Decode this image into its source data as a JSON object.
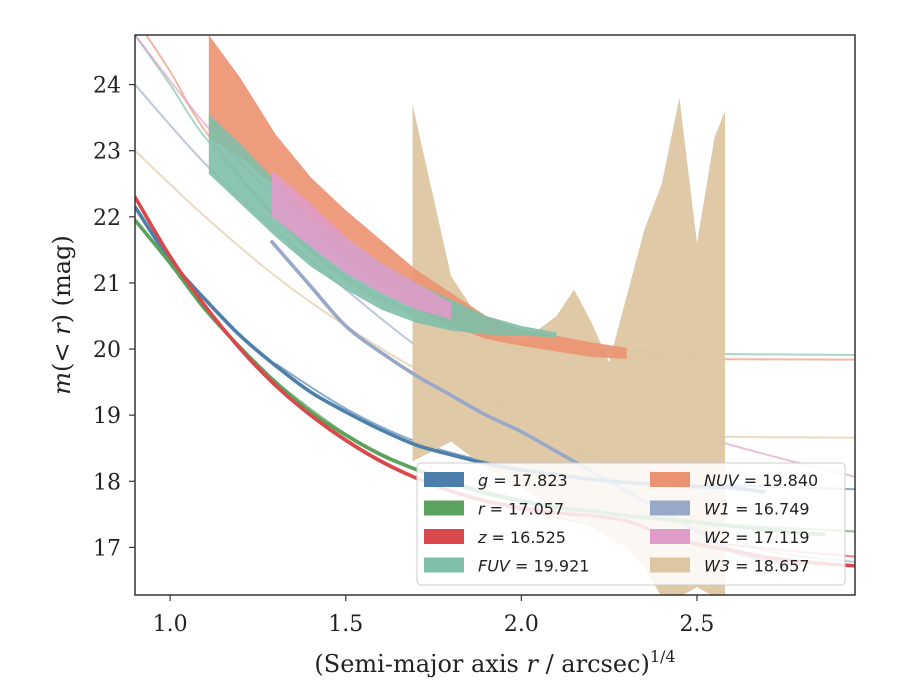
{
  "chart_data": {
    "type": "line",
    "xlabel": "(Semi-major axis r / arcsec)^1/4",
    "ylabel": "m(< r) (mag)",
    "xlim": [
      0.9,
      2.95
    ],
    "ylim": [
      24.75,
      16.28
    ],
    "y_inverted": true,
    "x_ticks": [
      1.0,
      1.5,
      2.0,
      2.5
    ],
    "x_tick_labels": [
      "1.0",
      "1.5",
      "2.0",
      "2.5"
    ],
    "y_ticks": [
      17,
      18,
      19,
      20,
      21,
      22,
      23,
      24
    ],
    "y_tick_labels": [
      "17",
      "18",
      "19",
      "20",
      "21",
      "22",
      "23",
      "24"
    ],
    "grid": false,
    "legend_position": "lower-right",
    "series": [
      {
        "key": "g",
        "label_var": "g",
        "label_val": "= 17.823",
        "color": "#4c7faa",
        "data_type": "line",
        "data": [
          [
            0.9,
            22.15
          ],
          [
            1.0,
            21.35
          ],
          [
            1.1,
            20.75
          ],
          [
            1.2,
            20.2
          ],
          [
            1.3,
            19.75
          ],
          [
            1.4,
            19.35
          ],
          [
            1.5,
            19.05
          ],
          [
            1.6,
            18.78
          ],
          [
            1.7,
            18.55
          ],
          [
            1.8,
            18.4
          ],
          [
            1.9,
            18.27
          ],
          [
            2.0,
            18.17
          ],
          [
            2.1,
            18.1
          ],
          [
            2.2,
            18.03
          ],
          [
            2.3,
            17.98
          ],
          [
            2.4,
            17.95
          ],
          [
            2.5,
            17.92
          ],
          [
            2.6,
            17.9
          ],
          [
            2.69,
            17.84
          ]
        ],
        "model": [
          [
            1.3,
            19.78
          ],
          [
            1.5,
            19.1
          ],
          [
            1.7,
            18.6
          ],
          [
            1.9,
            18.3
          ],
          [
            2.1,
            18.12
          ],
          [
            2.3,
            18.02
          ],
          [
            2.5,
            17.96
          ],
          [
            2.7,
            17.92
          ],
          [
            2.95,
            17.88
          ]
        ]
      },
      {
        "key": "r",
        "label_var": "r",
        "label_val": "= 17.057",
        "color": "#5ba35c",
        "data_type": "line",
        "data": [
          [
            0.9,
            21.95
          ],
          [
            1.0,
            21.3
          ],
          [
            1.1,
            20.6
          ],
          [
            1.2,
            20.02
          ],
          [
            1.3,
            19.5
          ],
          [
            1.4,
            19.05
          ],
          [
            1.5,
            18.7
          ],
          [
            1.6,
            18.4
          ],
          [
            1.7,
            18.18
          ],
          [
            1.8,
            17.98
          ],
          [
            1.9,
            17.82
          ],
          [
            2.0,
            17.7
          ],
          [
            2.1,
            17.6
          ],
          [
            2.2,
            17.55
          ],
          [
            2.3,
            17.48
          ],
          [
            2.4,
            17.43
          ],
          [
            2.5,
            17.38
          ],
          [
            2.6,
            17.32
          ],
          [
            2.7,
            17.27
          ],
          [
            2.8,
            17.22
          ],
          [
            2.86,
            17.2
          ]
        ],
        "model": [
          [
            1.3,
            19.5
          ],
          [
            1.5,
            18.72
          ],
          [
            1.7,
            18.18
          ],
          [
            1.9,
            17.85
          ],
          [
            2.1,
            17.62
          ],
          [
            2.3,
            17.48
          ],
          [
            2.5,
            17.38
          ],
          [
            2.7,
            17.31
          ],
          [
            2.95,
            17.24
          ]
        ]
      },
      {
        "key": "z",
        "label_var": "z",
        "label_val": "= 16.525",
        "color": "#d9484b",
        "data_type": "line",
        "data": [
          [
            0.9,
            22.3
          ],
          [
            1.0,
            21.4
          ],
          [
            1.1,
            20.65
          ],
          [
            1.2,
            20.0
          ],
          [
            1.3,
            19.45
          ],
          [
            1.4,
            19.0
          ],
          [
            1.5,
            18.62
          ],
          [
            1.6,
            18.3
          ],
          [
            1.7,
            18.05
          ],
          [
            1.8,
            17.85
          ],
          [
            1.9,
            17.7
          ],
          [
            2.0,
            17.6
          ],
          [
            2.1,
            17.52
          ],
          [
            2.2,
            17.48
          ],
          [
            2.3,
            17.4
          ],
          [
            2.4,
            17.2
          ],
          [
            2.5,
            17.05
          ],
          [
            2.6,
            16.95
          ],
          [
            2.7,
            16.85
          ],
          [
            2.8,
            16.78
          ],
          [
            2.95,
            16.72
          ]
        ],
        "model": [
          [
            1.3,
            19.45
          ],
          [
            1.5,
            18.64
          ],
          [
            1.7,
            18.06
          ],
          [
            1.9,
            17.7
          ],
          [
            2.1,
            17.45
          ],
          [
            2.3,
            17.25
          ],
          [
            2.5,
            17.1
          ],
          [
            2.7,
            16.98
          ],
          [
            2.95,
            16.86
          ]
        ]
      },
      {
        "key": "FUV",
        "label_var": "FUV",
        "label_val": "= 19.921",
        "color": "#7fbfaa",
        "data_type": "band",
        "band": [
          [
            1.11,
            22.65,
            23.55
          ],
          [
            1.2,
            22.2,
            23.1
          ],
          [
            1.3,
            21.7,
            22.55
          ],
          [
            1.4,
            21.25,
            22.0
          ],
          [
            1.5,
            20.9,
            21.65
          ],
          [
            1.6,
            20.6,
            21.3
          ],
          [
            1.7,
            20.4,
            21.0
          ],
          [
            1.8,
            20.28,
            20.75
          ],
          [
            1.9,
            20.22,
            20.5
          ],
          [
            2.0,
            20.2,
            20.35
          ],
          [
            2.1,
            20.18,
            20.25
          ]
        ],
        "model": [
          [
            0.9,
            24.75
          ],
          [
            1.0,
            24.0
          ],
          [
            1.1,
            23.2
          ],
          [
            1.3,
            22.0
          ],
          [
            1.5,
            21.1
          ],
          [
            1.7,
            20.55
          ],
          [
            1.9,
            20.2
          ],
          [
            2.1,
            20.05
          ],
          [
            2.3,
            19.97
          ],
          [
            2.5,
            19.93
          ],
          [
            2.95,
            19.91
          ]
        ]
      },
      {
        "key": "NUV",
        "label_var": "NUV",
        "label_val": "= 19.840",
        "color": "#eb9270",
        "data_type": "band",
        "band": [
          [
            1.11,
            23.2,
            24.75
          ],
          [
            1.2,
            22.9,
            24.1
          ],
          [
            1.3,
            22.45,
            23.25
          ],
          [
            1.4,
            21.85,
            22.6
          ],
          [
            1.5,
            21.35,
            22.1
          ],
          [
            1.6,
            20.95,
            21.65
          ],
          [
            1.7,
            20.6,
            21.2
          ],
          [
            1.8,
            20.35,
            20.85
          ],
          [
            1.9,
            20.15,
            20.5
          ],
          [
            2.0,
            20.05,
            20.3
          ],
          [
            2.2,
            19.88,
            20.1
          ],
          [
            2.3,
            19.85,
            20.02
          ]
        ],
        "model": [
          [
            0.9,
            25.0
          ],
          [
            1.0,
            24.2
          ],
          [
            1.1,
            23.3
          ],
          [
            1.3,
            22.0
          ],
          [
            1.5,
            21.05
          ],
          [
            1.7,
            20.5
          ],
          [
            1.9,
            20.1
          ],
          [
            2.1,
            19.95
          ],
          [
            2.3,
            19.88
          ],
          [
            2.5,
            19.85
          ],
          [
            2.95,
            19.84
          ]
        ]
      },
      {
        "key": "W1",
        "label_var": "W1",
        "label_val": "= 16.749",
        "color": "#99a8c8",
        "data_type": "line",
        "data": [
          [
            1.29,
            21.62
          ],
          [
            1.4,
            20.95
          ],
          [
            1.5,
            20.35
          ],
          [
            1.6,
            19.95
          ],
          [
            1.7,
            19.6
          ],
          [
            1.8,
            19.3
          ],
          [
            1.9,
            19.0
          ],
          [
            2.0,
            18.75
          ],
          [
            2.1,
            18.45
          ],
          [
            2.2,
            18.15
          ],
          [
            2.3,
            17.85
          ],
          [
            2.4,
            17.55
          ],
          [
            2.5,
            17.25
          ],
          [
            2.6,
            16.95
          ],
          [
            2.7,
            16.8
          ],
          [
            2.8,
            16.75
          ]
        ],
        "model": [
          [
            0.9,
            24.0
          ],
          [
            1.1,
            22.8
          ],
          [
            1.3,
            21.8
          ],
          [
            1.5,
            20.9
          ],
          [
            1.7,
            20.05
          ],
          [
            1.9,
            19.35
          ],
          [
            2.1,
            18.65
          ],
          [
            2.3,
            18.0
          ],
          [
            2.5,
            17.4
          ],
          [
            2.7,
            16.95
          ],
          [
            2.95,
            16.78
          ]
        ]
      },
      {
        "key": "W2",
        "label_var": "W2",
        "label_val": "= 17.119",
        "color": "#e09cc9",
        "data_type": "band",
        "band": [
          [
            1.29,
            22.0,
            22.7
          ],
          [
            1.4,
            21.55,
            22.2
          ],
          [
            1.5,
            21.15,
            21.7
          ],
          [
            1.6,
            20.85,
            21.3
          ],
          [
            1.7,
            20.6,
            21.0
          ],
          [
            1.8,
            20.45,
            20.7
          ]
        ],
        "model": [
          [
            0.9,
            24.75
          ],
          [
            1.1,
            23.4
          ],
          [
            1.3,
            22.3
          ],
          [
            1.5,
            21.4
          ],
          [
            1.7,
            20.6
          ],
          [
            1.9,
            20.0
          ],
          [
            2.1,
            19.5
          ],
          [
            2.3,
            19.05
          ],
          [
            2.5,
            18.7
          ],
          [
            2.7,
            18.4
          ],
          [
            2.95,
            18.07
          ]
        ]
      },
      {
        "key": "W3",
        "label_var": "W3",
        "label_val": "= 18.657",
        "color": "#dec6a2",
        "data_type": "band",
        "band": [
          [
            1.69,
            18.3,
            23.7
          ],
          [
            1.8,
            18.6,
            21.1
          ],
          [
            1.9,
            18.2,
            20.3
          ],
          [
            2.0,
            17.9,
            20.1
          ],
          [
            2.1,
            17.6,
            20.5
          ],
          [
            2.15,
            17.4,
            20.9
          ],
          [
            2.2,
            17.3,
            20.4
          ],
          [
            2.25,
            17.15,
            19.8
          ],
          [
            2.3,
            17.0,
            20.8
          ],
          [
            2.35,
            16.7,
            21.8
          ],
          [
            2.4,
            16.25,
            22.5
          ],
          [
            2.45,
            16.25,
            23.8
          ],
          [
            2.5,
            16.4,
            21.6
          ],
          [
            2.55,
            16.25,
            23.2
          ],
          [
            2.58,
            16.25,
            23.6
          ]
        ],
        "model": [
          [
            0.9,
            23.0
          ],
          [
            1.1,
            22.0
          ],
          [
            1.3,
            21.1
          ],
          [
            1.5,
            20.35
          ],
          [
            1.7,
            19.7
          ],
          [
            1.9,
            19.2
          ],
          [
            2.1,
            18.9
          ],
          [
            2.3,
            18.75
          ],
          [
            2.5,
            18.68
          ],
          [
            2.95,
            18.66
          ]
        ]
      }
    ]
  }
}
